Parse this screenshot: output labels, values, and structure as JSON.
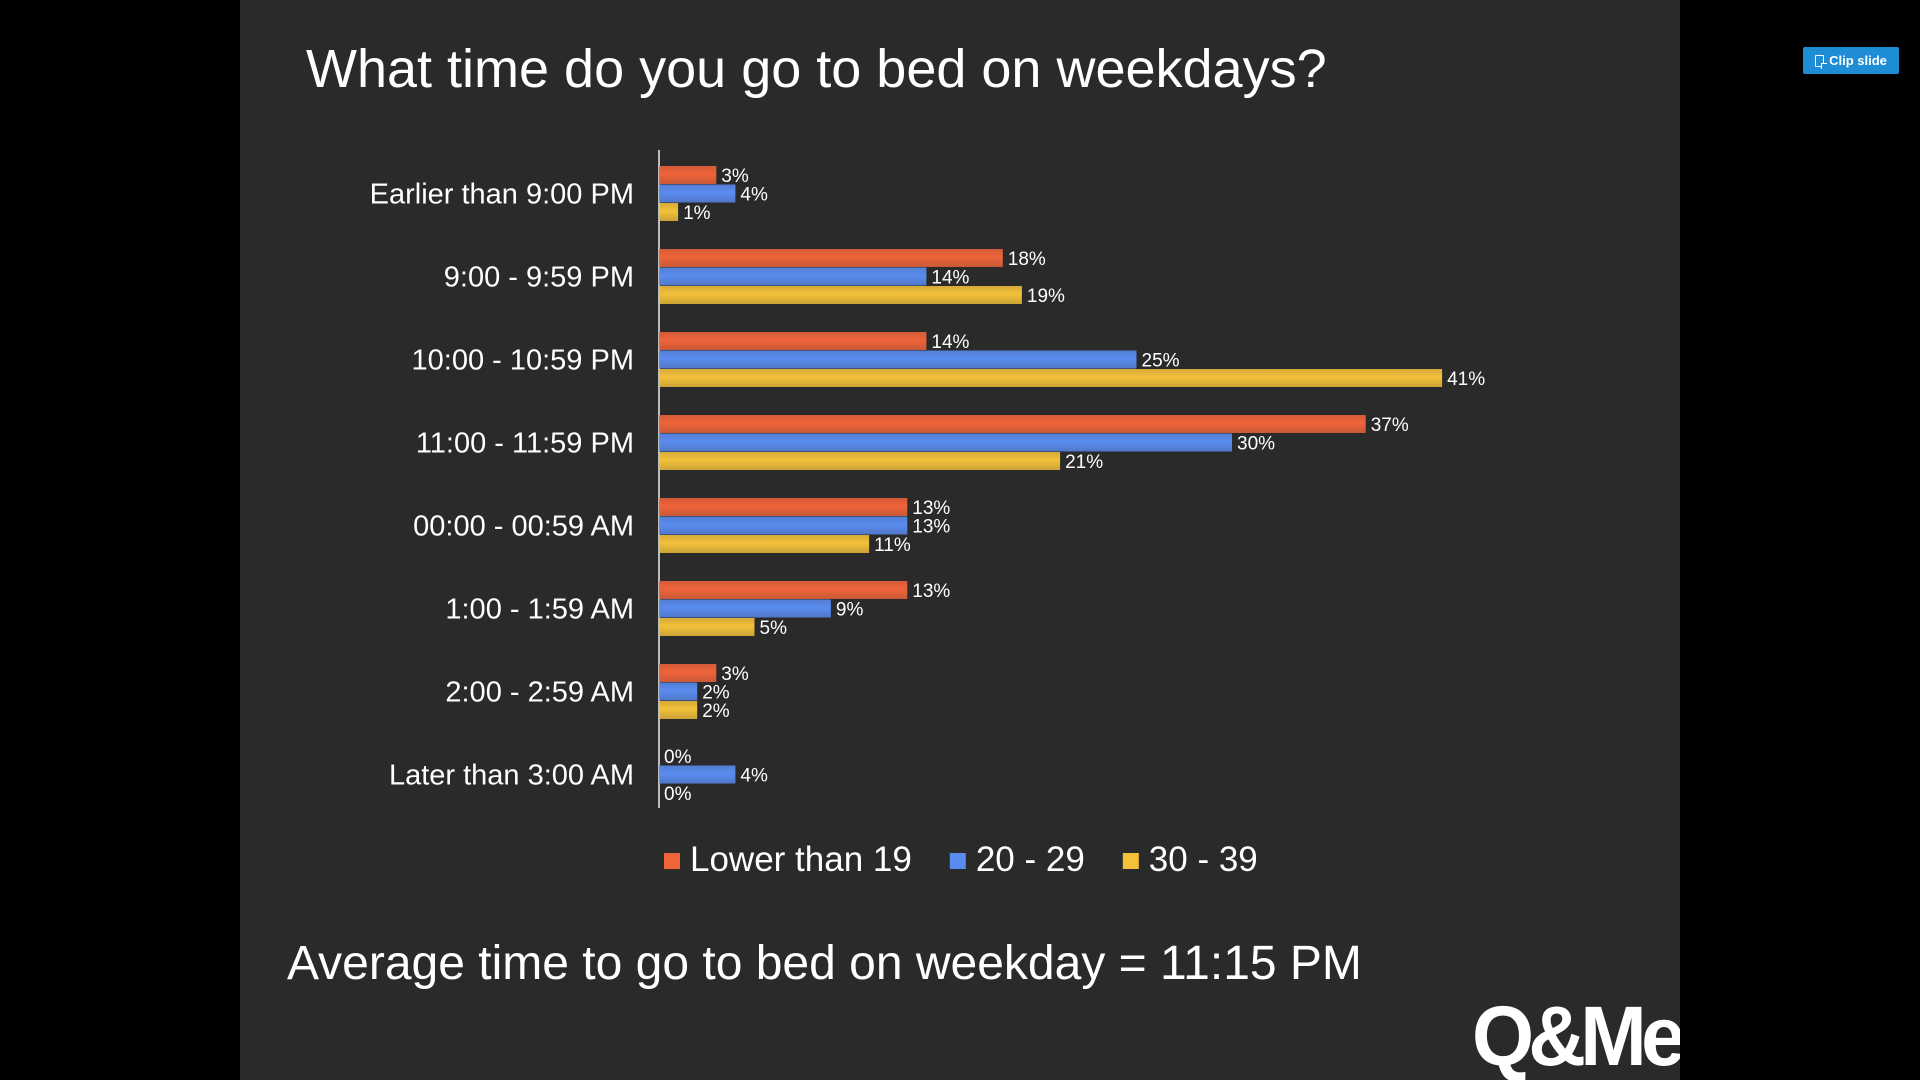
{
  "slide": {
    "title": "What time do you go to bed on weekdays?",
    "footer_note": "Average time to go to bed on weekday = 11:15 PM",
    "logo_text": "Q&Me"
  },
  "toolbar": {
    "clip_label": "Clip slide",
    "clip_icon": "clip-slide-icon"
  },
  "colors": {
    "slide_background": "#2a2a2a",
    "page_background": "#000000",
    "text": "#ffffff",
    "button": "#1f8dd6"
  },
  "chart_data": {
    "type": "bar",
    "orientation": "horizontal",
    "title": "",
    "xlabel": "",
    "ylabel": "",
    "xlim": [
      0,
      41
    ],
    "grid": false,
    "legend_position": "bottom",
    "value_suffix": "%",
    "categories": [
      "Earlier than 9:00 PM",
      "9:00 - 9:59 PM",
      "10:00 - 10:59 PM",
      "11:00 - 11:59 PM",
      "00:00 - 00:59 AM",
      "1:00 - 1:59 AM",
      "2:00 - 2:59 AM",
      "Later than 3:00 AM"
    ],
    "series": [
      {
        "name": "Lower than 19",
        "color": "#f0643a",
        "values": [
          3,
          18,
          14,
          37,
          13,
          13,
          3,
          0
        ]
      },
      {
        "name": "20 - 29",
        "color": "#5a8cf0",
        "values": [
          4,
          14,
          25,
          30,
          13,
          9,
          2,
          4
        ]
      },
      {
        "name": "30 - 39",
        "color": "#f3c13a",
        "values": [
          1,
          19,
          41,
          21,
          11,
          5,
          2,
          0
        ]
      }
    ]
  }
}
